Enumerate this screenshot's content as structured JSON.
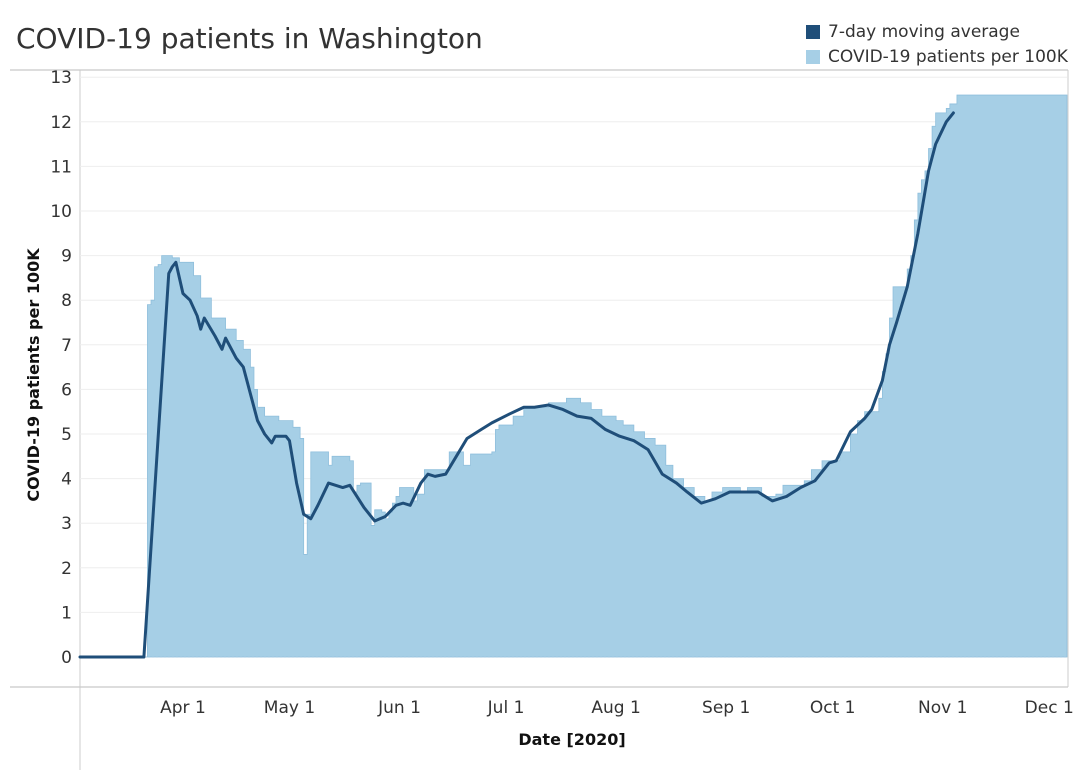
{
  "title": "COVID-19 patients in Washington",
  "legend": [
    {
      "label": "7-day moving average",
      "color": "#1f4e79"
    },
    {
      "label": "COVID-19 patients per 100K",
      "color": "#a6cfe6"
    }
  ],
  "chart_data": {
    "type": "area",
    "title": "COVID-19 patients in Washington",
    "xlabel": "Date [2020]",
    "ylabel": "COVID-19 patients per 100K",
    "ylim": [
      0,
      13.3
    ],
    "yticks": [
      0,
      1,
      2,
      3,
      4,
      5,
      6,
      7,
      8,
      9,
      10,
      11,
      12,
      13
    ],
    "xlim": [
      "2020-03-03",
      "2020-12-06"
    ],
    "xticks": [
      {
        "date": "2020-04-01",
        "label": "Apr 1"
      },
      {
        "date": "2020-05-01",
        "label": "May 1"
      },
      {
        "date": "2020-06-01",
        "label": "Jun 1"
      },
      {
        "date": "2020-07-01",
        "label": "Jul 1"
      },
      {
        "date": "2020-08-01",
        "label": "Aug 1"
      },
      {
        "date": "2020-09-01",
        "label": "Sep 1"
      },
      {
        "date": "2020-10-01",
        "label": "Oct 1"
      },
      {
        "date": "2020-11-01",
        "label": "Nov 1"
      },
      {
        "date": "2020-12-01",
        "label": "Dec 1"
      }
    ],
    "grid": true,
    "legend_position": "top-right",
    "series": [
      {
        "name": "COVID-19 patients per 100K",
        "kind": "step-area",
        "color": "#a6cfe6",
        "points": [
          [
            "2020-03-03",
            0
          ],
          [
            "2020-03-21",
            0
          ],
          [
            "2020-03-22",
            7.9
          ],
          [
            "2020-03-23",
            8.0
          ],
          [
            "2020-03-24",
            8.75
          ],
          [
            "2020-03-25",
            8.8
          ],
          [
            "2020-03-26",
            9.0
          ],
          [
            "2020-03-29",
            8.95
          ],
          [
            "2020-03-31",
            8.85
          ],
          [
            "2020-04-04",
            8.55
          ],
          [
            "2020-04-06",
            8.05
          ],
          [
            "2020-04-09",
            7.6
          ],
          [
            "2020-04-13",
            7.35
          ],
          [
            "2020-04-16",
            7.1
          ],
          [
            "2020-04-18",
            6.9
          ],
          [
            "2020-04-20",
            6.5
          ],
          [
            "2020-04-21",
            6.0
          ],
          [
            "2020-04-22",
            5.6
          ],
          [
            "2020-04-24",
            5.4
          ],
          [
            "2020-04-28",
            5.3
          ],
          [
            "2020-05-02",
            5.15
          ],
          [
            "2020-05-04",
            4.9
          ],
          [
            "2020-05-05",
            2.3
          ],
          [
            "2020-05-06",
            3.2
          ],
          [
            "2020-05-07",
            4.6
          ],
          [
            "2020-05-12",
            4.3
          ],
          [
            "2020-05-13",
            4.5
          ],
          [
            "2020-05-18",
            4.4
          ],
          [
            "2020-05-19",
            3.7
          ],
          [
            "2020-05-20",
            3.85
          ],
          [
            "2020-05-21",
            3.9
          ],
          [
            "2020-05-24",
            2.95
          ],
          [
            "2020-05-25",
            3.3
          ],
          [
            "2020-05-27",
            3.25
          ],
          [
            "2020-05-28",
            3.1
          ],
          [
            "2020-05-29",
            3.25
          ],
          [
            "2020-05-30",
            3.45
          ],
          [
            "2020-05-31",
            3.6
          ],
          [
            "2020-06-01",
            3.8
          ],
          [
            "2020-06-05",
            3.5
          ],
          [
            "2020-06-06",
            3.65
          ],
          [
            "2020-06-08",
            4.2
          ],
          [
            "2020-06-15",
            4.6
          ],
          [
            "2020-06-19",
            4.3
          ],
          [
            "2020-06-21",
            4.55
          ],
          [
            "2020-06-27",
            4.6
          ],
          [
            "2020-06-28",
            5.1
          ],
          [
            "2020-06-29",
            5.2
          ],
          [
            "2020-07-03",
            5.4
          ],
          [
            "2020-07-06",
            5.6
          ],
          [
            "2020-07-13",
            5.7
          ],
          [
            "2020-07-18",
            5.8
          ],
          [
            "2020-07-22",
            5.7
          ],
          [
            "2020-07-25",
            5.55
          ],
          [
            "2020-07-28",
            5.4
          ],
          [
            "2020-08-01",
            5.3
          ],
          [
            "2020-08-03",
            5.2
          ],
          [
            "2020-08-06",
            5.05
          ],
          [
            "2020-08-09",
            4.9
          ],
          [
            "2020-08-12",
            4.75
          ],
          [
            "2020-08-15",
            4.3
          ],
          [
            "2020-08-17",
            4.0
          ],
          [
            "2020-08-20",
            3.8
          ],
          [
            "2020-08-23",
            3.6
          ],
          [
            "2020-08-26",
            3.5
          ],
          [
            "2020-08-28",
            3.7
          ],
          [
            "2020-08-31",
            3.8
          ],
          [
            "2020-09-05",
            3.7
          ],
          [
            "2020-09-07",
            3.8
          ],
          [
            "2020-09-11",
            3.6
          ],
          [
            "2020-09-15",
            3.65
          ],
          [
            "2020-09-17",
            3.85
          ],
          [
            "2020-09-23",
            3.95
          ],
          [
            "2020-09-25",
            4.2
          ],
          [
            "2020-09-28",
            4.4
          ],
          [
            "2020-10-03",
            4.6
          ],
          [
            "2020-10-06",
            5.0
          ],
          [
            "2020-10-08",
            5.3
          ],
          [
            "2020-10-10",
            5.5
          ],
          [
            "2020-10-14",
            5.8
          ],
          [
            "2020-10-15",
            6.4
          ],
          [
            "2020-10-16",
            6.8
          ],
          [
            "2020-10-17",
            7.6
          ],
          [
            "2020-10-18",
            8.3
          ],
          [
            "2020-10-22",
            8.7
          ],
          [
            "2020-10-23",
            9.0
          ],
          [
            "2020-10-24",
            9.8
          ],
          [
            "2020-10-25",
            10.4
          ],
          [
            "2020-10-26",
            10.7
          ],
          [
            "2020-10-27",
            10.9
          ],
          [
            "2020-10-28",
            11.4
          ],
          [
            "2020-10-29",
            11.9
          ],
          [
            "2020-10-30",
            12.2
          ],
          [
            "2020-11-02",
            12.3
          ],
          [
            "2020-11-03",
            12.4
          ],
          [
            "2020-11-05",
            12.6
          ],
          [
            "2020-11-07",
            12.6
          ]
        ]
      },
      {
        "name": "7-day moving average",
        "kind": "line",
        "color": "#1f4e79",
        "points": [
          [
            "2020-03-03",
            0
          ],
          [
            "2020-03-21",
            0
          ],
          [
            "2020-03-28",
            8.6
          ],
          [
            "2020-03-29",
            8.75
          ],
          [
            "2020-03-30",
            8.85
          ],
          [
            "2020-04-01",
            8.15
          ],
          [
            "2020-04-03",
            8.0
          ],
          [
            "2020-04-05",
            7.65
          ],
          [
            "2020-04-06",
            7.35
          ],
          [
            "2020-04-07",
            7.6
          ],
          [
            "2020-04-10",
            7.2
          ],
          [
            "2020-04-12",
            6.9
          ],
          [
            "2020-04-13",
            7.15
          ],
          [
            "2020-04-16",
            6.7
          ],
          [
            "2020-04-18",
            6.5
          ],
          [
            "2020-04-20",
            5.9
          ],
          [
            "2020-04-22",
            5.3
          ],
          [
            "2020-04-24",
            5.0
          ],
          [
            "2020-04-26",
            4.8
          ],
          [
            "2020-04-27",
            4.95
          ],
          [
            "2020-04-30",
            4.95
          ],
          [
            "2020-05-01",
            4.85
          ],
          [
            "2020-05-03",
            3.9
          ],
          [
            "2020-05-05",
            3.2
          ],
          [
            "2020-05-07",
            3.1
          ],
          [
            "2020-05-09",
            3.4
          ],
          [
            "2020-05-12",
            3.9
          ],
          [
            "2020-05-14",
            3.85
          ],
          [
            "2020-05-16",
            3.8
          ],
          [
            "2020-05-18",
            3.85
          ],
          [
            "2020-05-20",
            3.6
          ],
          [
            "2020-05-22",
            3.35
          ],
          [
            "2020-05-25",
            3.05
          ],
          [
            "2020-05-28",
            3.15
          ],
          [
            "2020-05-31",
            3.4
          ],
          [
            "2020-06-02",
            3.45
          ],
          [
            "2020-06-04",
            3.4
          ],
          [
            "2020-06-07",
            3.9
          ],
          [
            "2020-06-09",
            4.1
          ],
          [
            "2020-06-11",
            4.05
          ],
          [
            "2020-06-14",
            4.1
          ],
          [
            "2020-06-17",
            4.5
          ],
          [
            "2020-06-20",
            4.9
          ],
          [
            "2020-06-24",
            5.1
          ],
          [
            "2020-06-27",
            5.25
          ],
          [
            "2020-07-02",
            5.45
          ],
          [
            "2020-07-06",
            5.6
          ],
          [
            "2020-07-09",
            5.6
          ],
          [
            "2020-07-13",
            5.65
          ],
          [
            "2020-07-17",
            5.55
          ],
          [
            "2020-07-21",
            5.4
          ],
          [
            "2020-07-25",
            5.35
          ],
          [
            "2020-07-29",
            5.1
          ],
          [
            "2020-08-02",
            4.95
          ],
          [
            "2020-08-06",
            4.85
          ],
          [
            "2020-08-10",
            4.65
          ],
          [
            "2020-08-14",
            4.1
          ],
          [
            "2020-08-18",
            3.9
          ],
          [
            "2020-08-21",
            3.7
          ],
          [
            "2020-08-25",
            3.45
          ],
          [
            "2020-08-29",
            3.55
          ],
          [
            "2020-09-02",
            3.7
          ],
          [
            "2020-09-06",
            3.7
          ],
          [
            "2020-09-10",
            3.7
          ],
          [
            "2020-09-14",
            3.5
          ],
          [
            "2020-09-18",
            3.6
          ],
          [
            "2020-09-22",
            3.8
          ],
          [
            "2020-09-26",
            3.95
          ],
          [
            "2020-09-30",
            4.35
          ],
          [
            "2020-10-02",
            4.4
          ],
          [
            "2020-10-06",
            5.05
          ],
          [
            "2020-10-10",
            5.35
          ],
          [
            "2020-10-12",
            5.55
          ],
          [
            "2020-10-15",
            6.2
          ],
          [
            "2020-10-17",
            7.0
          ],
          [
            "2020-10-19",
            7.5
          ],
          [
            "2020-10-22",
            8.3
          ],
          [
            "2020-10-25",
            9.5
          ],
          [
            "2020-10-28",
            10.9
          ],
          [
            "2020-10-30",
            11.5
          ],
          [
            "2020-11-02",
            12.0
          ],
          [
            "2020-11-04",
            12.2
          ]
        ]
      }
    ]
  }
}
